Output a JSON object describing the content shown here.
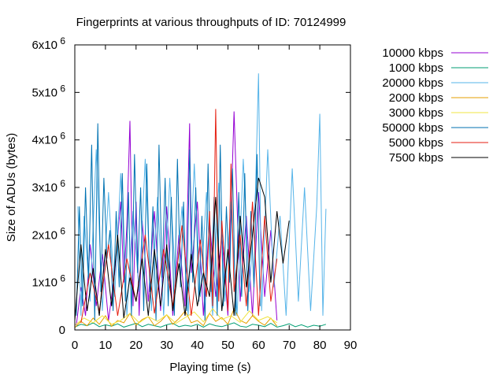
{
  "chart_data": {
    "type": "line",
    "title": "Fingerprints at various throughputs of ID: 70124999",
    "xlabel": "Playing time (s)",
    "ylabel": "Size of ADUs (bytes)",
    "xlim": [
      0,
      90
    ],
    "ylim": [
      0,
      6000000
    ],
    "x_ticks": [
      "0",
      "10",
      "20",
      "30",
      "40",
      "50",
      "60",
      "70",
      "80",
      "90"
    ],
    "y_ticks": [
      {
        "base": "0",
        "exp": ""
      },
      {
        "base": "1x10",
        "exp": "6"
      },
      {
        "base": "2x10",
        "exp": "6"
      },
      {
        "base": "3x10",
        "exp": "6"
      },
      {
        "base": "4x10",
        "exp": "6"
      },
      {
        "base": "5x10",
        "exp": "6"
      },
      {
        "base": "6x10",
        "exp": "6"
      }
    ],
    "grid": false,
    "legend_position": "outside-right",
    "series": [
      {
        "name": "10000 kbps",
        "color": "#9400d3",
        "x": [
          0.5,
          2,
          3.5,
          5,
          7,
          9,
          11,
          13,
          15,
          16,
          17,
          18,
          19,
          20,
          21,
          22,
          24,
          26,
          28,
          30,
          32,
          34,
          36,
          37.5,
          38,
          40,
          42,
          44,
          46,
          48,
          50,
          52,
          54,
          56,
          58,
          60,
          62,
          64,
          66
        ],
        "y": [
          100000,
          900000,
          300000,
          1800000,
          500000,
          1600000,
          200000,
          1200000,
          2700000,
          1000000,
          2200000,
          4400000,
          500000,
          2700000,
          300000,
          2300000,
          600000,
          2500000,
          400000,
          2600000,
          300000,
          2000000,
          500000,
          4350000,
          1200000,
          2700000,
          300000,
          2300000,
          700000,
          2000000,
          300000,
          4600000,
          600000,
          2400000,
          300000,
          2900000,
          700000,
          2100000,
          200000
        ]
      },
      {
        "name": "1000 kbps",
        "color": "#009e73",
        "x": [
          0,
          2,
          4,
          6,
          8,
          10,
          12,
          14,
          16,
          18,
          20,
          22,
          24,
          26,
          28,
          30,
          32,
          34,
          36,
          38,
          40,
          42,
          44,
          46,
          48,
          50,
          52,
          54,
          56,
          58,
          60,
          62,
          64,
          66,
          68,
          70,
          72,
          74,
          76,
          78,
          80,
          82
        ],
        "y": [
          60000,
          120000,
          90000,
          150000,
          70000,
          110000,
          80000,
          130000,
          60000,
          100000,
          140000,
          70000,
          120000,
          90000,
          60000,
          110000,
          140000,
          70000,
          100000,
          80000,
          120000,
          60000,
          130000,
          90000,
          70000,
          110000,
          150000,
          80000,
          60000,
          120000,
          100000,
          70000,
          140000,
          60000,
          90000,
          130000,
          70000,
          110000,
          60000,
          100000,
          80000,
          120000
        ]
      },
      {
        "name": "20000 kbps",
        "color": "#56b4e9",
        "x": [
          1,
          2,
          3,
          5,
          7,
          9,
          11,
          13,
          15,
          17,
          19,
          21,
          23,
          25,
          27,
          29,
          31,
          33,
          35,
          37,
          39,
          41,
          43,
          45,
          47,
          49,
          51,
          53,
          55,
          57,
          59,
          60,
          61,
          63,
          65,
          67,
          69,
          71,
          73,
          75,
          77,
          79,
          80,
          81,
          82
        ],
        "y": [
          2600000,
          300000,
          2400000,
          600000,
          3800000,
          400000,
          2900000,
          700000,
          3300000,
          300000,
          2500000,
          800000,
          3600000,
          400000,
          2800000,
          300000,
          3200000,
          900000,
          2600000,
          300000,
          3500000,
          700000,
          2900000,
          300000,
          3100000,
          600000,
          2700000,
          300000,
          3600000,
          800000,
          2900000,
          5400000,
          400000,
          3800000,
          900000,
          2400000,
          300000,
          3400000,
          600000,
          3000000,
          400000,
          2600000,
          4550000,
          300000,
          2550000
        ]
      },
      {
        "name": "2000 kbps",
        "color": "#e69f00",
        "x": [
          0,
          2,
          4,
          6,
          8,
          10,
          12,
          14,
          16,
          18,
          20,
          22,
          24,
          26,
          28,
          30,
          32,
          34,
          36,
          38,
          40,
          42,
          44,
          46,
          48,
          50,
          52,
          54,
          56,
          58,
          60,
          62,
          64,
          66
        ],
        "y": [
          50000,
          180000,
          90000,
          250000,
          120000,
          300000,
          80000,
          200000,
          150000,
          350000,
          100000,
          220000,
          280000,
          90000,
          180000,
          320000,
          120000,
          240000,
          400000,
          150000,
          200000,
          90000,
          350000,
          180000,
          260000,
          120000,
          450000,
          200000,
          140000,
          300000,
          180000,
          100000,
          250000,
          80000
        ]
      },
      {
        "name": "3000 kbps",
        "color": "#f0e442",
        "x": [
          0,
          3,
          6,
          9,
          12,
          15,
          18,
          21,
          24,
          27,
          30,
          33,
          36,
          39,
          42,
          45,
          48,
          51,
          54,
          57,
          60,
          63,
          66
        ],
        "y": [
          100000,
          250000,
          150000,
          300000,
          120000,
          200000,
          350000,
          150000,
          280000,
          180000,
          320000,
          140000,
          260000,
          380000,
          170000,
          450000,
          220000,
          300000,
          160000,
          400000,
          200000,
          280000,
          150000
        ]
      },
      {
        "name": "50000 kbps",
        "color": "#0072b2",
        "x": [
          0.5,
          1.5,
          2.5,
          3.5,
          4.5,
          5.5,
          6.5,
          7.5,
          8.5,
          9.5,
          10.5,
          11.5,
          12.5,
          13.5,
          14.5,
          15.5,
          16.5,
          17.5,
          18.5,
          19.5,
          20.5,
          21.5,
          22.5,
          23.5,
          24.5,
          25.5,
          26.5,
          27.5,
          28.5,
          29.5,
          30.5,
          31.5,
          32.5,
          33.5,
          34.5,
          35.5,
          36.5,
          37.5,
          38.5,
          39.5,
          40.5,
          41.5,
          42.5,
          43.5,
          44.5,
          45.5,
          46.5,
          47.5,
          48.5,
          49.5,
          50.5,
          51.5,
          52.5,
          53.5,
          54.5,
          55.5,
          56.5,
          57.5,
          58.5,
          59.5,
          60.5
        ],
        "y": [
          300000,
          2600000,
          500000,
          3000000,
          1000000,
          3900000,
          200000,
          4350000,
          800000,
          3200000,
          1500000,
          2100000,
          400000,
          2500000,
          900000,
          3300000,
          600000,
          2900000,
          300000,
          3700000,
          1200000,
          3000000,
          400000,
          3500000,
          800000,
          2600000,
          200000,
          3900000,
          1100000,
          3200000,
          500000,
          2800000,
          300000,
          3600000,
          900000,
          2700000,
          400000,
          3800000,
          1000000,
          3000000,
          600000,
          2400000,
          200000,
          3500000,
          800000,
          2800000,
          300000,
          3900000,
          500000,
          2600000,
          1000000,
          3400000,
          300000,
          2900000,
          700000,
          3300000,
          400000,
          2500000,
          900000,
          3700000,
          500000
        ]
      },
      {
        "name": "5000 kbps",
        "color": "#e51e10",
        "x": [
          2,
          5,
          8,
          11,
          14,
          17,
          20,
          23,
          26,
          29,
          32,
          35,
          38,
          41,
          43,
          44,
          45,
          46,
          47,
          48,
          50,
          51,
          52,
          54,
          56,
          58,
          60,
          62,
          64,
          66
        ],
        "y": [
          150000,
          1200000,
          400000,
          1800000,
          300000,
          1500000,
          600000,
          2000000,
          350000,
          1700000,
          500000,
          2200000,
          300000,
          1900000,
          700000,
          2500000,
          500000,
          4650000,
          600000,
          2300000,
          400000,
          3500000,
          800000,
          2000000,
          500000,
          2700000,
          300000,
          2400000,
          600000,
          1500000
        ]
      },
      {
        "name": "7500 kbps",
        "color": "#000000",
        "x": [
          0,
          2,
          4,
          6,
          8,
          10,
          12,
          14,
          16,
          18,
          20,
          22,
          24,
          26,
          28,
          30,
          32,
          34,
          36,
          38,
          40,
          42,
          44,
          46,
          48,
          50,
          52,
          54,
          56,
          58,
          60,
          62,
          64,
          66,
          68,
          70
        ],
        "y": [
          200000,
          1800000,
          400000,
          1300000,
          300000,
          1700000,
          500000,
          2000000,
          250000,
          1100000,
          600000,
          1500000,
          300000,
          1700000,
          500000,
          1800000,
          400000,
          1400000,
          300000,
          1600000,
          500000,
          1200000,
          700000,
          2800000,
          400000,
          1700000,
          300000,
          2400000,
          900000,
          2000000,
          3200000,
          2800000,
          1000000,
          2500000,
          1400000,
          2300000
        ]
      }
    ]
  }
}
